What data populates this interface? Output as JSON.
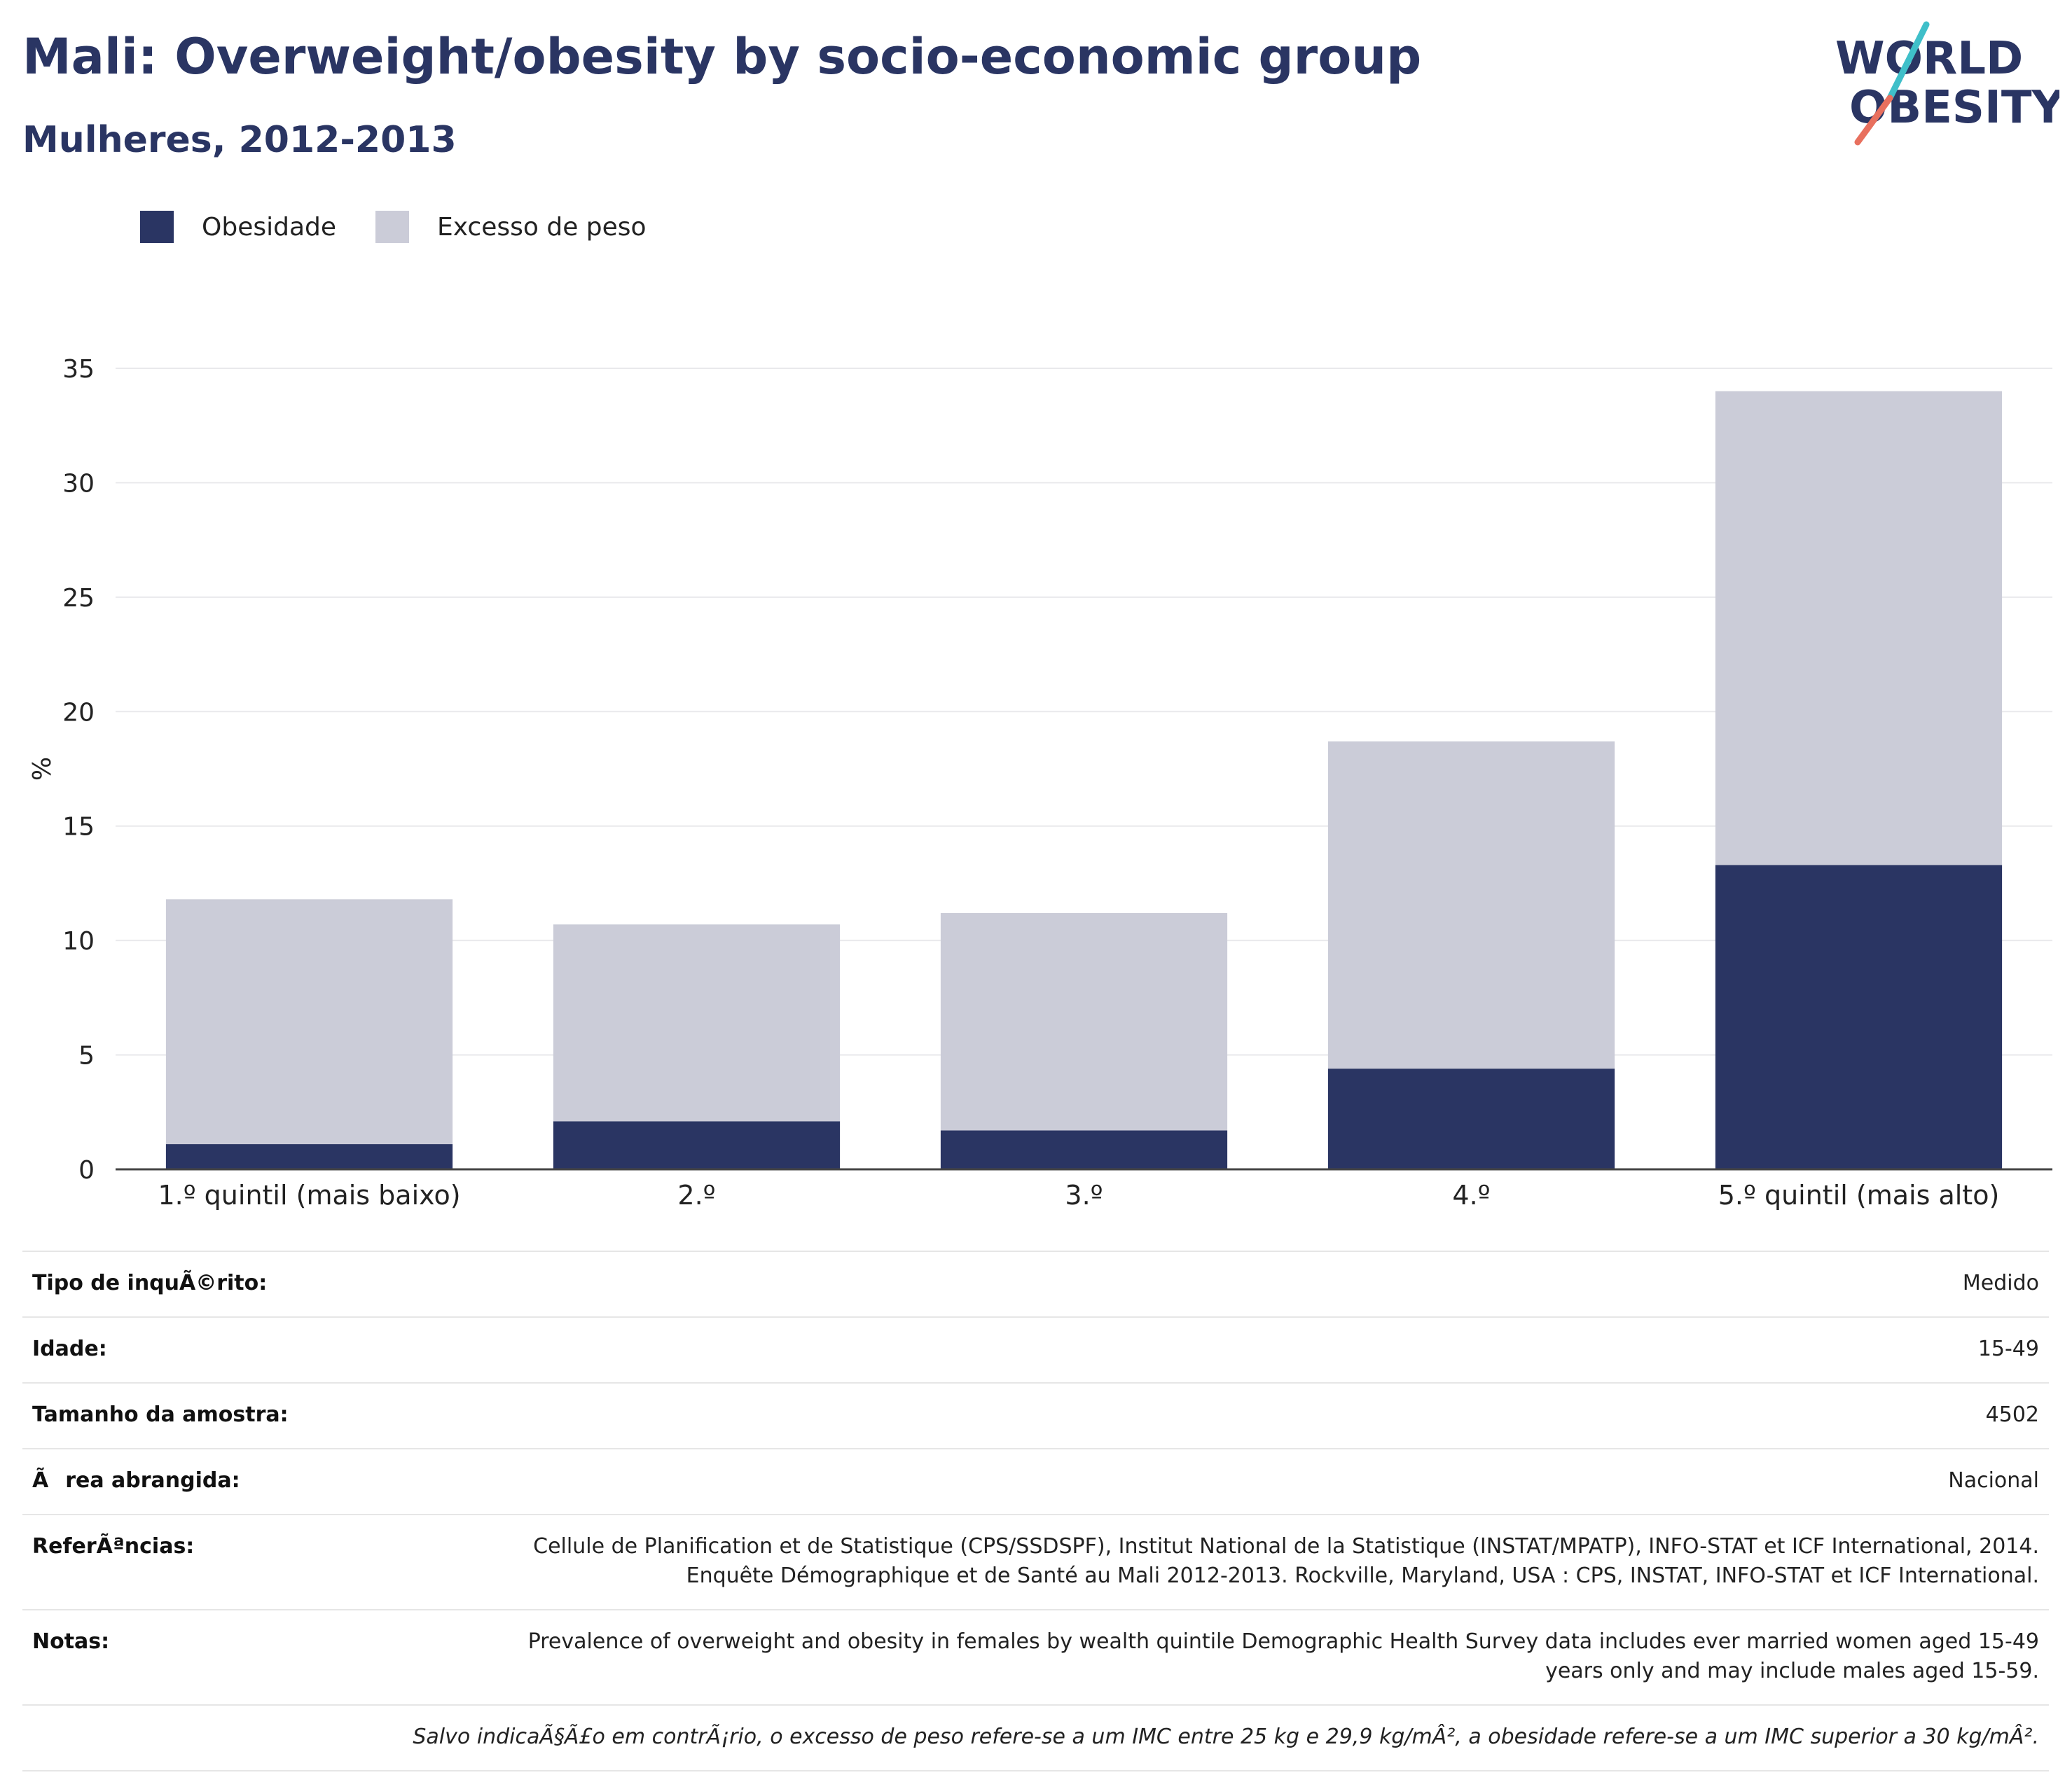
{
  "title": "Mali: Overweight/obesity by socio-economic group",
  "subtitle": "Mulheres, 2012-2013",
  "logo": {
    "line1": "WORLD",
    "line2": "OBESITY"
  },
  "colors": {
    "obesity": "#2a3563",
    "overweight": "#cbccd8",
    "title": "#2a3563",
    "logo_teal": "#3fbfc9",
    "logo_coral": "#e8705e",
    "grid": "#e9e9ec",
    "axis": "#444444"
  },
  "chart_data": {
    "type": "bar",
    "stacked": true,
    "categories": [
      "1.º quintil (mais baixo)",
      "2.º",
      "3.º",
      "4.º",
      "5.º quintil (mais alto)"
    ],
    "series": [
      {
        "name": "Obesidade",
        "values": [
          1.1,
          2.1,
          1.7,
          4.4,
          13.3
        ]
      },
      {
        "name": "Excesso de peso",
        "values": [
          10.7,
          8.6,
          9.5,
          14.3,
          20.7
        ]
      }
    ],
    "ylabel": "%",
    "ylim": [
      0,
      35
    ],
    "yticks": [
      0,
      5,
      10,
      15,
      20,
      25,
      30,
      35
    ],
    "grid": true,
    "legend_position": "top-left"
  },
  "info": [
    {
      "label": "Tipo de inquÃ©rito:",
      "value": "Medido"
    },
    {
      "label": "Idade:",
      "value": "15-49"
    },
    {
      "label": "Tamanho da amostra:",
      "value": "4502"
    },
    {
      "label": "Ãrea abrangida:",
      "value": "Nacional"
    },
    {
      "label": "ReferÃªncias:",
      "value": "Cellule de Planification et de Statistique (CPS/SSDSPF), Institut National de la Statistique (INSTAT/MPATP), INFO-STAT et ICF International, 2014. Enquête Démographique et de Santé au Mali 2012-2013. Rockville, Maryland, USA : CPS, INSTAT, INFO-STAT et ICF International."
    },
    {
      "label": "Notas:",
      "value": "Prevalence of overweight and obesity in females by wealth quintile Demographic Health Survey data includes ever married women aged 15-49 years only and may include males aged 15-59."
    }
  ],
  "footnote": "Salvo indicaÃ§Ã£o em contrÃ¡rio, o excesso de peso refere-se a um IMC entre 25 kg e 29,9 kg/mÂ², a obesidade refere-se a um IMC superior a 30 kg/mÂ²."
}
